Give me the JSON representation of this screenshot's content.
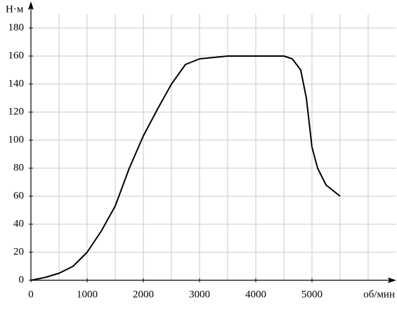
{
  "chart_data": {
    "type": "line",
    "y_label": "Н·м",
    "x_label": "об/мин",
    "x": [
      0,
      250,
      500,
      750,
      1000,
      1250,
      1500,
      1750,
      2000,
      2250,
      2500,
      2750,
      3000,
      3500,
      4000,
      4500,
      4650,
      4800,
      4900,
      5000,
      5100,
      5250,
      5500
    ],
    "values": [
      0,
      2,
      5,
      10,
      20,
      35,
      53,
      80,
      103,
      122,
      140,
      154,
      158,
      160,
      160,
      160,
      158,
      150,
      130,
      95,
      80,
      68,
      60
    ],
    "color": "#000000",
    "xlim": [
      0,
      6400
    ],
    "ylim": [
      0,
      195
    ],
    "xticks": [
      0,
      1000,
      2000,
      3000,
      4000,
      5000
    ],
    "yticks": [
      0,
      20,
      40,
      60,
      80,
      100,
      120,
      140,
      160,
      180
    ],
    "xgrid": [
      500,
      1000,
      1500,
      2000,
      2500,
      3000,
      3500,
      4000,
      4500,
      5000,
      5500,
      6000
    ],
    "ygrid": [
      20,
      40,
      60,
      80,
      100,
      120,
      140,
      160,
      180
    ],
    "grid": true
  }
}
